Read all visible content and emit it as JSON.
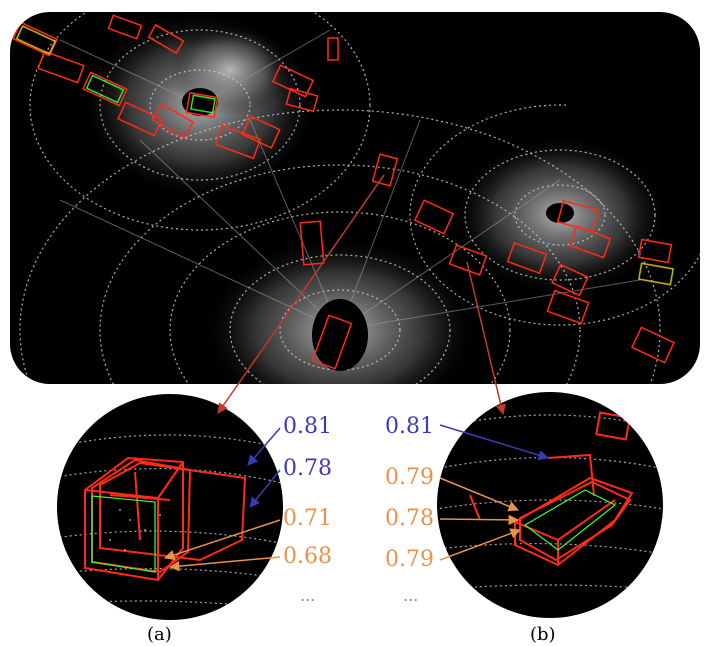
{
  "figure": {
    "colors": {
      "box_red": "#ff2a1a",
      "box_green": "#3cff3c",
      "box_yellow": "#e8d21a",
      "arrow_red": "#c0392b",
      "label_blue": "#3b3bb5",
      "label_orange": "#e8924a",
      "background": "#000000",
      "points": "#d8d8d8"
    },
    "panel_a": {
      "caption": "(a)",
      "scores_blue": [
        "0.81",
        "0.78"
      ],
      "scores_orange": [
        "0.71",
        "0.68"
      ],
      "ellipsis": "..."
    },
    "panel_b": {
      "caption": "(b)",
      "scores_blue": [
        "0.81"
      ],
      "scores_orange": [
        "0.79",
        "0.78",
        "0.79"
      ],
      "ellipsis": "..."
    }
  }
}
